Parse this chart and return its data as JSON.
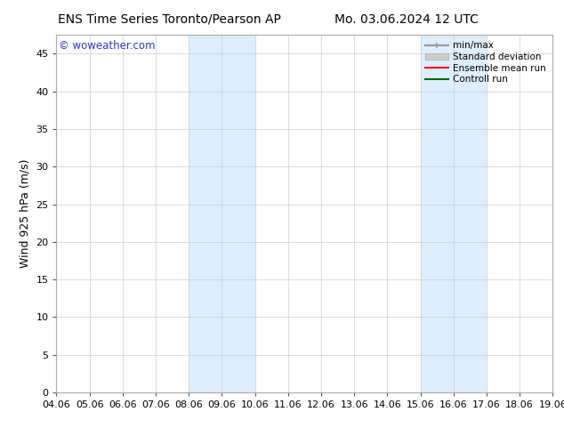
{
  "title_left": "ENS Time Series Toronto/Pearson AP",
  "title_right": "Mo. 03.06.2024 12 UTC",
  "ylabel": "Wind 925 hPa (m/s)",
  "watermark": "© woweather.com",
  "x_ticks": [
    "04.06",
    "05.06",
    "06.06",
    "07.06",
    "08.06",
    "09.06",
    "10.06",
    "11.06",
    "12.06",
    "13.06",
    "14.06",
    "15.06",
    "16.06",
    "17.06",
    "18.06",
    "19.06"
  ],
  "x_tick_positions": [
    0,
    1,
    2,
    3,
    4,
    5,
    6,
    7,
    8,
    9,
    10,
    11,
    12,
    13,
    14,
    15
  ],
  "ylim": [
    0,
    47.5
  ],
  "yticks": [
    0,
    5,
    10,
    15,
    20,
    25,
    30,
    35,
    40,
    45
  ],
  "shaded_regions": [
    {
      "x_start": 4,
      "x_end": 6,
      "color": "#ddeeff"
    },
    {
      "x_start": 11,
      "x_end": 13,
      "color": "#ddeeff"
    }
  ],
  "background_color": "#ffffff",
  "plot_bg_color": "#ffffff",
  "spine_color": "#aaaaaa",
  "tick_color": "#555555",
  "title_fontsize": 10,
  "axis_fontsize": 9,
  "tick_fontsize": 8,
  "watermark_color": "#3333cc",
  "legend_entries": [
    {
      "label": "min/max",
      "color": "#999999",
      "lw": 1.5,
      "style": "minmax"
    },
    {
      "label": "Standard deviation",
      "color": "#cccccc",
      "lw": 6,
      "style": "band"
    },
    {
      "label": "Ensemble mean run",
      "color": "#ff0000",
      "lw": 1.5,
      "style": "line"
    },
    {
      "label": "Controll run",
      "color": "#006600",
      "lw": 1.5,
      "style": "line"
    }
  ]
}
